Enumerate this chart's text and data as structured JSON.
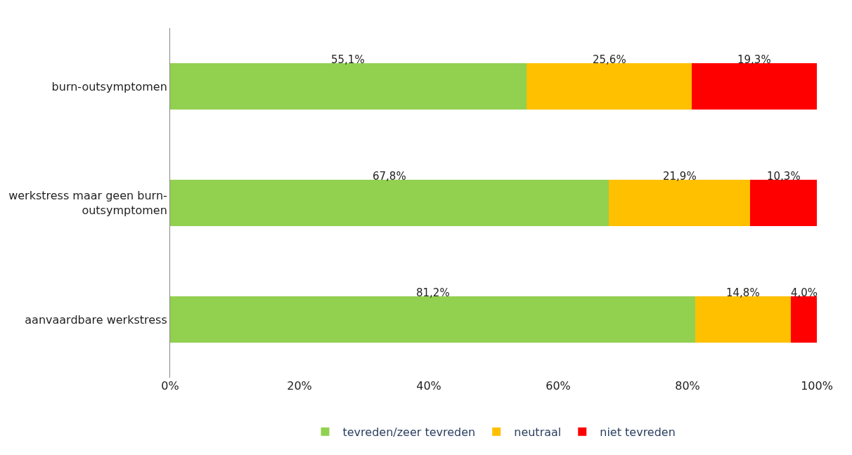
{
  "chart_data": {
    "type": "bar",
    "orientation": "horizontal",
    "stacked": true,
    "categories": [
      "burn-outsymptomen",
      "werkstress maar geen burn-outsymptomen",
      "aanvaardbare werkstress"
    ],
    "series": [
      {
        "name": "tevreden/zeer tevreden",
        "color": "#92d050",
        "values": [
          55.1,
          67.8,
          81.2
        ],
        "value_labels": [
          "55,1%",
          "67,8%",
          "81,2%"
        ]
      },
      {
        "name": "neutraal",
        "color": "#ffc000",
        "values": [
          25.6,
          21.9,
          14.8
        ],
        "value_labels": [
          "25,6%",
          "21,9%",
          "14,8%"
        ]
      },
      {
        "name": "niet tevreden",
        "color": "#ff0000",
        "values": [
          19.3,
          10.3,
          4.0
        ],
        "value_labels": [
          "19,3%",
          "10,3%",
          "4,0%"
        ]
      }
    ],
    "xlim": [
      0,
      100
    ],
    "xticks": [
      {
        "value": 0,
        "label": "0%"
      },
      {
        "value": 20,
        "label": "20%"
      },
      {
        "value": 40,
        "label": "40%"
      },
      {
        "value": 60,
        "label": "60%"
      },
      {
        "value": 80,
        "label": "80%"
      },
      {
        "value": 100,
        "label": "100%"
      }
    ],
    "grid": false,
    "legend": "bottom"
  }
}
